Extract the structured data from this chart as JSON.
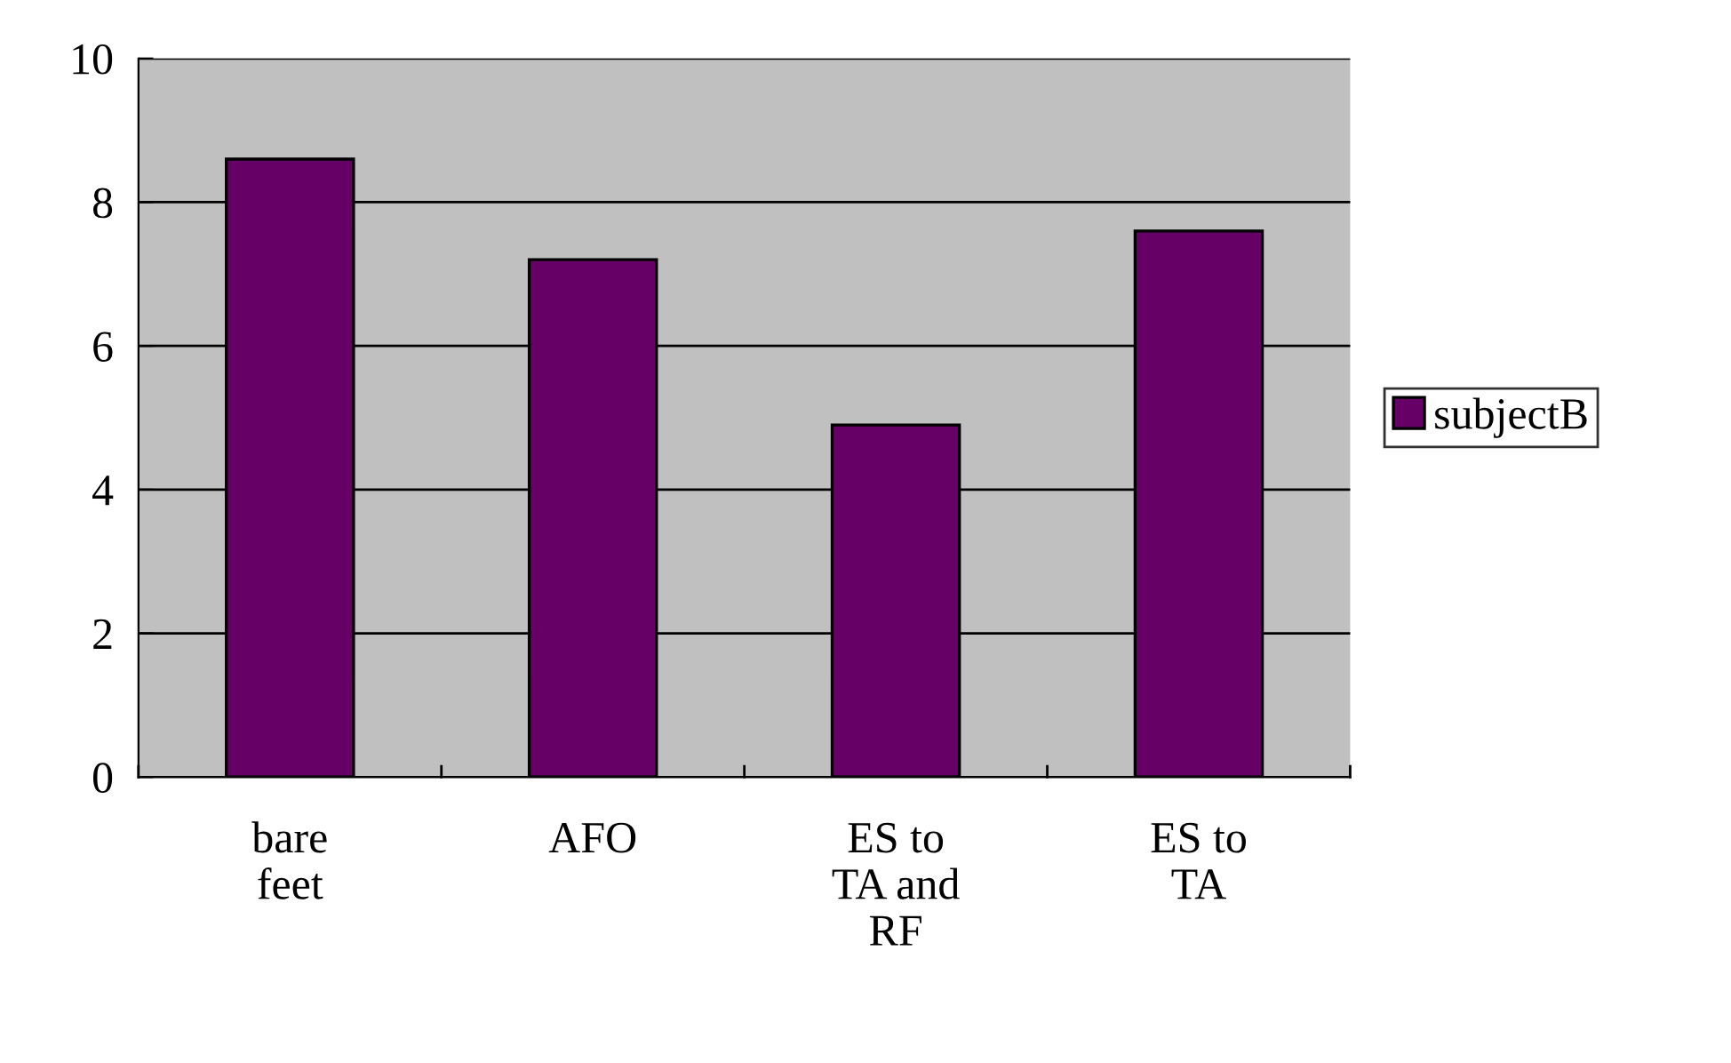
{
  "chart_data": {
    "type": "bar",
    "categories": [
      "bare feet",
      "AFO",
      "ES to TA and RF",
      "ES to TA"
    ],
    "series": [
      {
        "name": "subjectB",
        "color": "#660066",
        "values": [
          8.6,
          7.2,
          4.9,
          7.6
        ]
      }
    ],
    "ylim": [
      0,
      10
    ],
    "yticks": [
      0,
      2,
      4,
      6,
      8,
      10
    ],
    "grid": "y",
    "legend": "right"
  }
}
